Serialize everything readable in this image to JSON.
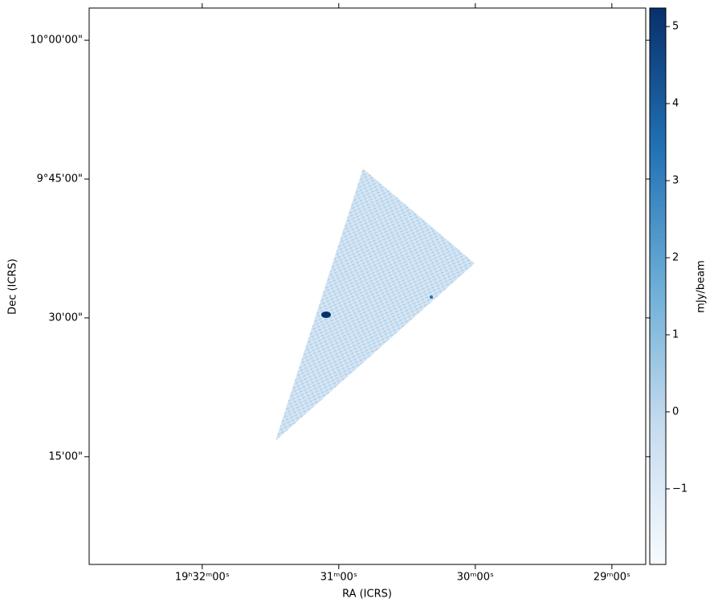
{
  "chart_data": {
    "type": "image",
    "xlabel": "RA (ICRS)",
    "ylabel": "Dec (ICRS)",
    "xlim": [
      293.207,
      292.188
    ],
    "xticks": [
      {
        "value": 293.0,
        "label": "19ʰ32ᵐ00ˢ"
      },
      {
        "value": 292.75,
        "label": "31ᵐ00ˢ"
      },
      {
        "value": 292.5,
        "label": "30ᵐ00ˢ"
      },
      {
        "value": 292.25,
        "label": "29ᵐ00ˢ"
      }
    ],
    "ylim": [
      9.056,
      10.058
    ],
    "yticks": [
      {
        "value": 10.0,
        "label": "10°00'00\""
      },
      {
        "value": 9.75,
        "label": "9°45'00\""
      },
      {
        "value": 9.5,
        "label": "30'00\""
      },
      {
        "value": 9.25,
        "label": "15'00\""
      }
    ],
    "colorbar": {
      "label": "mJy/beam",
      "colormap": "Blues",
      "clim": [
        -1.98,
        5.24
      ],
      "ticks": [
        {
          "value": -1,
          "label": "−1"
        },
        0,
        1,
        2,
        3,
        4,
        5
      ]
    }
  }
}
